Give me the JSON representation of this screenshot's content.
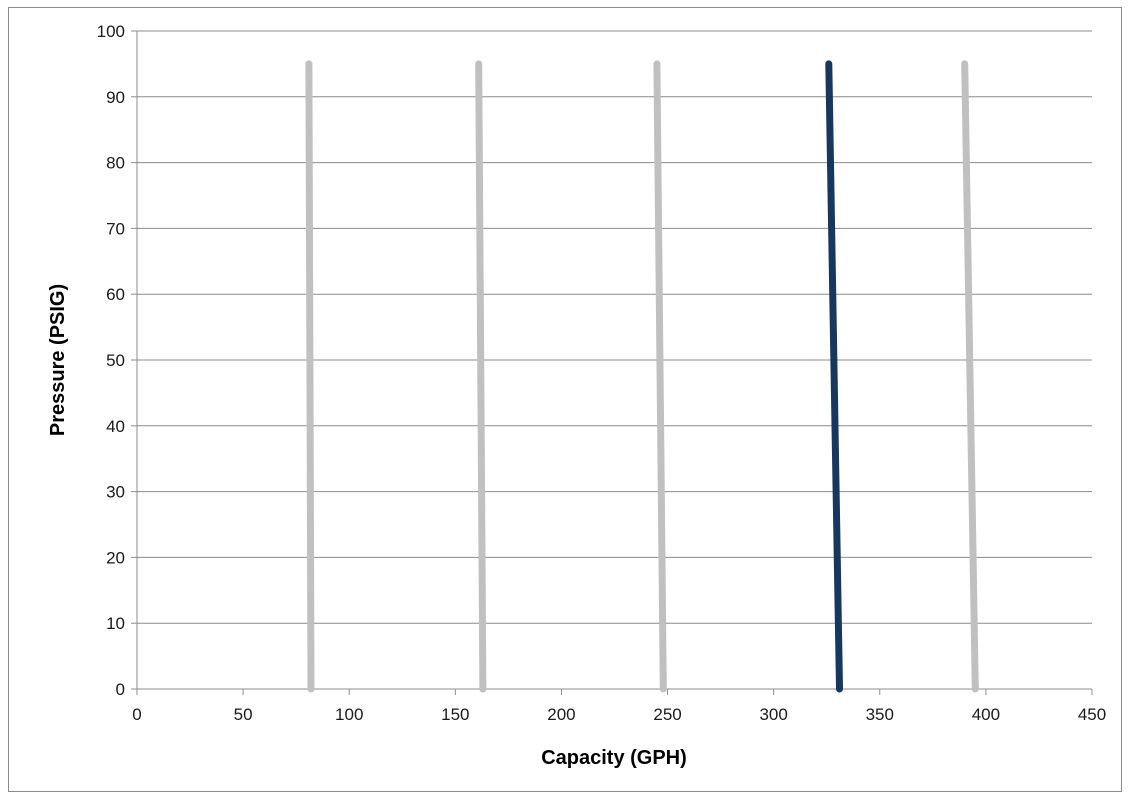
{
  "chart_data": {
    "type": "line",
    "title": "",
    "xlabel": "Capacity (GPH)",
    "ylabel": "Pressure (PSIG)",
    "xlim": [
      0,
      450
    ],
    "ylim": [
      0,
      100
    ],
    "x_ticks": [
      0,
      50,
      100,
      150,
      200,
      250,
      300,
      350,
      400,
      450
    ],
    "y_ticks": [
      0,
      10,
      20,
      30,
      40,
      50,
      60,
      70,
      80,
      90,
      100
    ],
    "grid": "horizontal",
    "legend": "none",
    "series": [
      {
        "color": "#c0c0c0",
        "points": [
          [
            81,
            95
          ],
          [
            82,
            0
          ]
        ]
      },
      {
        "color": "#c0c0c0",
        "points": [
          [
            161,
            95
          ],
          [
            163,
            0
          ]
        ]
      },
      {
        "color": "#c0c0c0",
        "points": [
          [
            245,
            95
          ],
          [
            248,
            0
          ]
        ]
      },
      {
        "color": "#17375e",
        "points": [
          [
            326,
            95
          ],
          [
            331,
            0
          ]
        ]
      },
      {
        "color": "#c0c0c0",
        "points": [
          [
            390,
            95
          ],
          [
            395,
            0
          ]
        ]
      }
    ]
  }
}
